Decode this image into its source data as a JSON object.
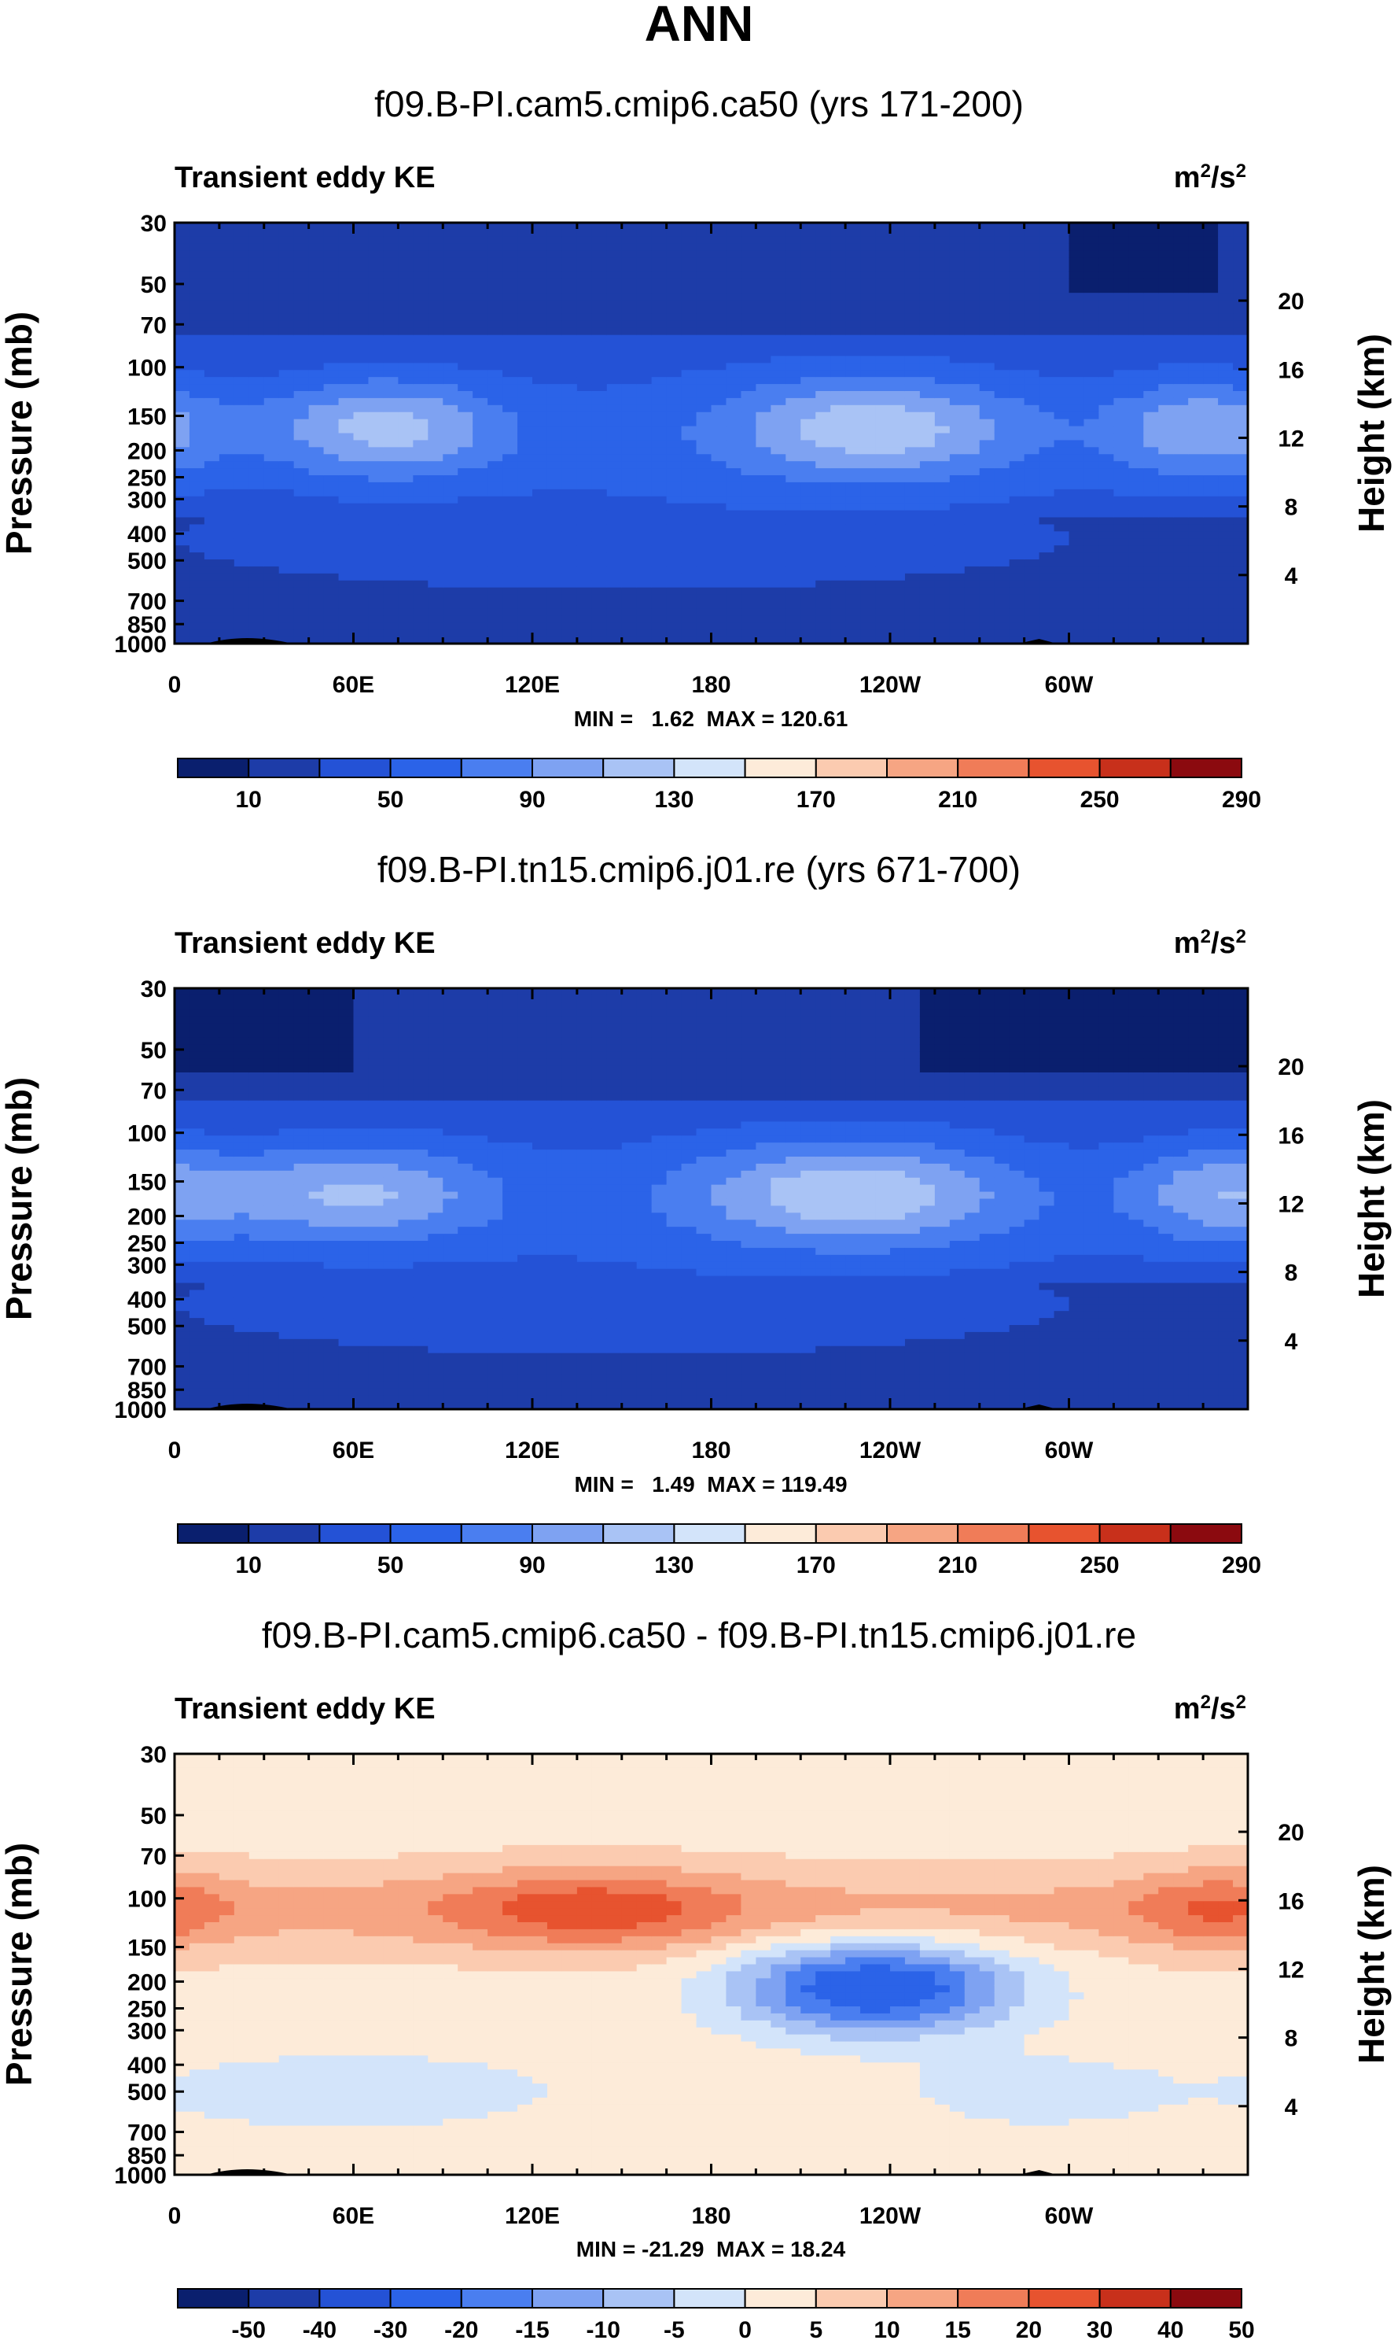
{
  "page_title": "ANN",
  "colors": {
    "abs_scale": [
      "#0a1f6e",
      "#1d3ca8",
      "#2452d6",
      "#2b63e8",
      "#4a7ef0",
      "#7ea2f2",
      "#a9c3f5",
      "#d3e4fa",
      "#fdebd9",
      "#fbcbb0",
      "#f6a583",
      "#f07c58",
      "#e7532f",
      "#c8301b",
      "#8b0a0f"
    ],
    "diff_scale": [
      "#0a1f6e",
      "#1d3ca8",
      "#2452d6",
      "#2b63e8",
      "#4a7ef0",
      "#7ea2f2",
      "#a9c3f5",
      "#d3e4fa",
      "#fdebd9",
      "#fbcbb0",
      "#f6a583",
      "#f07c58",
      "#e7532f",
      "#c8301b",
      "#8b0a0f"
    ]
  },
  "chart_data": [
    {
      "type": "heatmap",
      "id": "panel1",
      "title": "f09.B-PI.cam5.cmip6.ca50 (yrs 171-200)",
      "variable": "Transient eddy KE",
      "units_base": "m",
      "units_exp": "2",
      "units_mid": "/s",
      "units_exp2": "2",
      "ylabel": "Pressure (mb)",
      "ylabel_right": "Height (km)",
      "x_ticks": [
        "0",
        "60E",
        "120E",
        "180",
        "120W",
        "60W"
      ],
      "x_values": [
        0,
        60,
        120,
        180,
        240,
        300
      ],
      "xlim": [
        0,
        360
      ],
      "y_ticks": [
        "30",
        "50",
        "70",
        "100",
        "150",
        "200",
        "250",
        "300",
        "400",
        "500",
        "700",
        "850",
        "1000"
      ],
      "y_values": [
        30,
        50,
        70,
        100,
        150,
        200,
        250,
        300,
        400,
        500,
        700,
        850,
        1000
      ],
      "ylim": [
        30,
        1000
      ],
      "height_ticks": [
        "20",
        "16",
        "12",
        "8",
        "4"
      ],
      "height_values": [
        20,
        16,
        12,
        8,
        4
      ],
      "stats": "MIN =   1.62  MAX = 120.61",
      "levels": [
        10,
        30,
        50,
        70,
        90,
        110,
        130,
        150,
        170,
        190,
        210,
        230,
        250,
        270,
        290
      ],
      "colorbar_labels": [
        "10",
        "50",
        "90",
        "130",
        "170",
        "210",
        "250",
        "290"
      ],
      "field": "abs1"
    },
    {
      "type": "heatmap",
      "id": "panel2",
      "title": "f09.B-PI.tn15.cmip6.j01.re (yrs 671-700)",
      "variable": "Transient eddy KE",
      "units_base": "m",
      "units_exp": "2",
      "units_mid": "/s",
      "units_exp2": "2",
      "ylabel": "Pressure (mb)",
      "ylabel_right": "Height (km)",
      "x_ticks": [
        "0",
        "60E",
        "120E",
        "180",
        "120W",
        "60W"
      ],
      "x_values": [
        0,
        60,
        120,
        180,
        240,
        300
      ],
      "xlim": [
        0,
        360
      ],
      "y_ticks": [
        "30",
        "50",
        "70",
        "100",
        "150",
        "200",
        "250",
        "300",
        "400",
        "500",
        "700",
        "850",
        "1000"
      ],
      "y_values": [
        30,
        50,
        70,
        100,
        150,
        200,
        250,
        300,
        400,
        500,
        700,
        850,
        1000
      ],
      "ylim": [
        30,
        1000
      ],
      "height_ticks": [
        "20",
        "16",
        "12",
        "8",
        "4"
      ],
      "height_values": [
        20,
        16,
        12,
        8,
        4
      ],
      "stats": "MIN =   1.49  MAX = 119.49",
      "levels": [
        10,
        30,
        50,
        70,
        90,
        110,
        130,
        150,
        170,
        190,
        210,
        230,
        250,
        270,
        290
      ],
      "colorbar_labels": [
        "10",
        "50",
        "90",
        "130",
        "170",
        "210",
        "250",
        "290"
      ],
      "field": "abs2"
    },
    {
      "type": "heatmap",
      "id": "panel3",
      "title": "f09.B-PI.cam5.cmip6.ca50 - f09.B-PI.tn15.cmip6.j01.re",
      "variable": "Transient eddy KE",
      "units_base": "m",
      "units_exp": "2",
      "units_mid": "/s",
      "units_exp2": "2",
      "ylabel": "Pressure (mb)",
      "ylabel_right": "Height (km)",
      "x_ticks": [
        "0",
        "60E",
        "120E",
        "180",
        "120W",
        "60W"
      ],
      "x_values": [
        0,
        60,
        120,
        180,
        240,
        300
      ],
      "xlim": [
        0,
        360
      ],
      "y_ticks": [
        "30",
        "50",
        "70",
        "100",
        "150",
        "200",
        "250",
        "300",
        "400",
        "500",
        "700",
        "850",
        "1000"
      ],
      "y_values": [
        30,
        50,
        70,
        100,
        150,
        200,
        250,
        300,
        400,
        500,
        700,
        850,
        1000
      ],
      "ylim": [
        30,
        1000
      ],
      "height_ticks": [
        "20",
        "16",
        "12",
        "8",
        "4"
      ],
      "height_values": [
        20,
        16,
        12,
        8,
        4
      ],
      "stats": "MIN = -21.29  MAX = 18.24",
      "levels": [
        -50,
        -40,
        -30,
        -20,
        -15,
        -10,
        -5,
        0,
        5,
        10,
        15,
        20,
        30,
        40,
        50
      ],
      "colorbar_labels": [
        "-50",
        "-40",
        "-30",
        "-20",
        "-15",
        "-10",
        "-5",
        "0",
        "5",
        "10",
        "15",
        "20",
        "30",
        "40",
        "50"
      ],
      "field": "diff"
    }
  ]
}
